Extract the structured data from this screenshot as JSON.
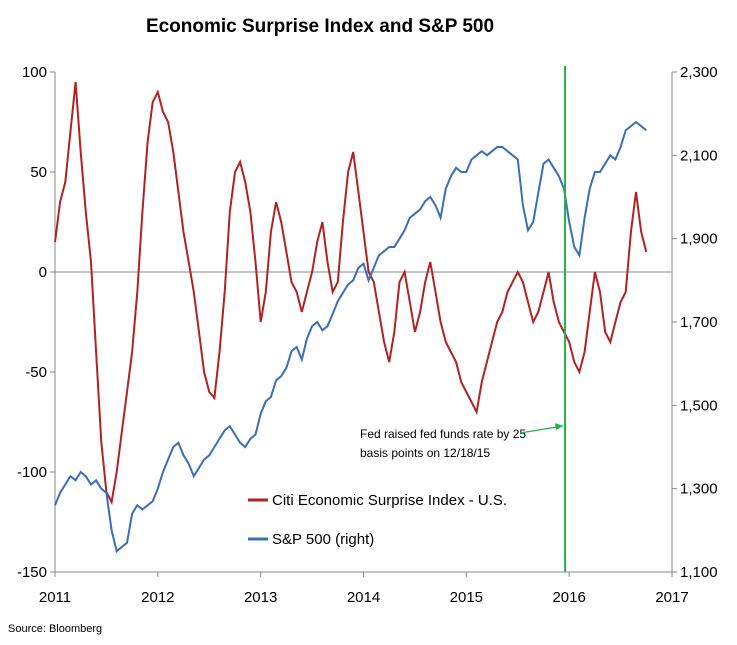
{
  "chart_data": {
    "type": "line",
    "title": "Economic Surprise Index and S&P 500",
    "source": "Source: Bloomberg",
    "x_ticks": [
      "2011",
      "2012",
      "2013",
      "2014",
      "2015",
      "2016",
      "2017"
    ],
    "xlim": [
      2011,
      2017
    ],
    "left_axis": {
      "ticks": [
        "100",
        "50",
        "0",
        "-50",
        "-100",
        "-150"
      ],
      "ylim": [
        -150,
        100
      ]
    },
    "right_axis": {
      "ticks": [
        "2,300",
        "2,100",
        "1,900",
        "1,700",
        "1,500",
        "1,300",
        "1,100"
      ],
      "ylim": [
        1100,
        2300
      ]
    },
    "zero_line": 0,
    "series": [
      {
        "name": "Citi Economic Surprise Index - U.S.",
        "axis": "left",
        "color": "#b22222",
        "x": [
          2011.0,
          2011.05,
          2011.1,
          2011.15,
          2011.2,
          2011.25,
          2011.3,
          2011.35,
          2011.4,
          2011.45,
          2011.5,
          2011.55,
          2011.6,
          2011.65,
          2011.7,
          2011.75,
          2011.8,
          2011.85,
          2011.9,
          2011.95,
          2012.0,
          2012.05,
          2012.1,
          2012.15,
          2012.2,
          2012.25,
          2012.3,
          2012.35,
          2012.4,
          2012.45,
          2012.5,
          2012.55,
          2012.6,
          2012.65,
          2012.7,
          2012.75,
          2012.8,
          2012.85,
          2012.9,
          2012.95,
          2013.0,
          2013.05,
          2013.1,
          2013.15,
          2013.2,
          2013.25,
          2013.3,
          2013.35,
          2013.4,
          2013.45,
          2013.5,
          2013.55,
          2013.6,
          2013.65,
          2013.7,
          2013.75,
          2013.8,
          2013.85,
          2013.9,
          2013.95,
          2014.0,
          2014.05,
          2014.1,
          2014.15,
          2014.2,
          2014.25,
          2014.3,
          2014.35,
          2014.4,
          2014.45,
          2014.5,
          2014.55,
          2014.6,
          2014.65,
          2014.7,
          2014.75,
          2014.8,
          2014.85,
          2014.9,
          2014.95,
          2015.0,
          2015.05,
          2015.1,
          2015.15,
          2015.2,
          2015.25,
          2015.3,
          2015.35,
          2015.4,
          2015.45,
          2015.5,
          2015.55,
          2015.6,
          2015.65,
          2015.7,
          2015.75,
          2015.8,
          2015.85,
          2015.9,
          2015.95,
          2016.0,
          2016.05,
          2016.1,
          2016.15,
          2016.2,
          2016.25,
          2016.3,
          2016.35,
          2016.4,
          2016.45,
          2016.5,
          2016.55,
          2016.6,
          2016.65,
          2016.7,
          2016.75
        ],
        "values": [
          15,
          35,
          45,
          70,
          95,
          60,
          30,
          5,
          -40,
          -85,
          -110,
          -115,
          -100,
          -80,
          -60,
          -40,
          -10,
          30,
          65,
          85,
          90,
          80,
          75,
          60,
          40,
          20,
          5,
          -10,
          -30,
          -50,
          -60,
          -63,
          -40,
          -10,
          30,
          50,
          55,
          45,
          30,
          5,
          -25,
          -10,
          20,
          35,
          25,
          10,
          -5,
          -10,
          -20,
          -10,
          0,
          15,
          25,
          5,
          -10,
          -5,
          25,
          50,
          60,
          40,
          20,
          0,
          -5,
          -20,
          -35,
          -45,
          -30,
          -5,
          0,
          -15,
          -30,
          -20,
          -5,
          5,
          -10,
          -25,
          -35,
          -40,
          -45,
          -55,
          -60,
          -65,
          -70,
          -55,
          -45,
          -35,
          -25,
          -20,
          -10,
          -5,
          0,
          -5,
          -15,
          -25,
          -20,
          -10,
          0,
          -15,
          -25,
          -30,
          -35,
          -45,
          -50,
          -40,
          -20,
          0,
          -10,
          -30,
          -35,
          -25,
          -15,
          -10,
          20,
          40,
          20,
          10
        ]
      },
      {
        "name": "S&P 500 (right)",
        "axis": "right",
        "color": "#3a6fb8",
        "x": [
          2011.0,
          2011.05,
          2011.1,
          2011.15,
          2011.2,
          2011.25,
          2011.3,
          2011.35,
          2011.4,
          2011.45,
          2011.5,
          2011.55,
          2011.6,
          2011.65,
          2011.7,
          2011.75,
          2011.8,
          2011.85,
          2011.9,
          2011.95,
          2012.0,
          2012.05,
          2012.1,
          2012.15,
          2012.2,
          2012.25,
          2012.3,
          2012.35,
          2012.4,
          2012.45,
          2012.5,
          2012.55,
          2012.6,
          2012.65,
          2012.7,
          2012.75,
          2012.8,
          2012.85,
          2012.9,
          2012.95,
          2013.0,
          2013.05,
          2013.1,
          2013.15,
          2013.2,
          2013.25,
          2013.3,
          2013.35,
          2013.4,
          2013.45,
          2013.5,
          2013.55,
          2013.6,
          2013.65,
          2013.7,
          2013.75,
          2013.8,
          2013.85,
          2013.9,
          2013.95,
          2014.0,
          2014.05,
          2014.1,
          2014.15,
          2014.2,
          2014.25,
          2014.3,
          2014.35,
          2014.4,
          2014.45,
          2014.5,
          2014.55,
          2014.6,
          2014.65,
          2014.7,
          2014.75,
          2014.8,
          2014.85,
          2014.9,
          2014.95,
          2015.0,
          2015.05,
          2015.1,
          2015.15,
          2015.2,
          2015.25,
          2015.3,
          2015.35,
          2015.4,
          2015.45,
          2015.5,
          2015.55,
          2015.6,
          2015.65,
          2015.7,
          2015.75,
          2015.8,
          2015.85,
          2015.9,
          2015.95,
          2016.0,
          2016.05,
          2016.1,
          2016.15,
          2016.2,
          2016.25,
          2016.3,
          2016.35,
          2016.4,
          2016.45,
          2016.5,
          2016.55,
          2016.6,
          2016.65,
          2016.7,
          2016.75
        ],
        "values": [
          1260,
          1290,
          1310,
          1330,
          1320,
          1340,
          1330,
          1310,
          1320,
          1300,
          1290,
          1200,
          1150,
          1160,
          1170,
          1240,
          1260,
          1250,
          1260,
          1270,
          1300,
          1340,
          1370,
          1400,
          1410,
          1380,
          1360,
          1330,
          1350,
          1370,
          1380,
          1400,
          1420,
          1440,
          1450,
          1430,
          1410,
          1400,
          1420,
          1430,
          1480,
          1510,
          1520,
          1560,
          1570,
          1590,
          1630,
          1640,
          1610,
          1660,
          1690,
          1700,
          1680,
          1690,
          1720,
          1750,
          1770,
          1790,
          1800,
          1830,
          1840,
          1800,
          1830,
          1860,
          1870,
          1880,
          1880,
          1900,
          1920,
          1950,
          1960,
          1970,
          1990,
          2000,
          1980,
          1950,
          2020,
          2050,
          2070,
          2060,
          2060,
          2090,
          2100,
          2110,
          2100,
          2110,
          2120,
          2120,
          2110,
          2100,
          2090,
          1980,
          1920,
          1940,
          2010,
          2080,
          2090,
          2070,
          2050,
          2020,
          1940,
          1880,
          1860,
          1950,
          2020,
          2060,
          2060,
          2080,
          2100,
          2090,
          2120,
          2160,
          2170,
          2180,
          2170,
          2160
        ]
      }
    ],
    "vertical_line": {
      "x": 2015.96,
      "color": "#22b14c"
    },
    "annotation": {
      "lines": [
        "Fed raised fed funds rate by 25",
        "basis points on 12/18/15"
      ],
      "points_to_x": 2015.96,
      "color": "#22b14c"
    },
    "legend_position": "lower-middle",
    "grid": false
  }
}
